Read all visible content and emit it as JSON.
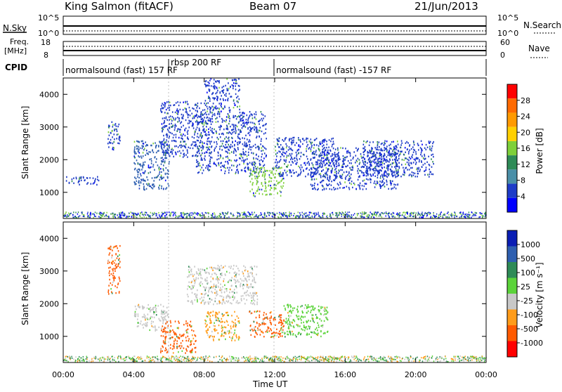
{
  "header": {
    "title": "King Salmon (fitACF)",
    "beam": "Beam 07",
    "date": "21/Jun/2013"
  },
  "top_panels": {
    "nsky_label": "N.Sky",
    "nsky_ticks": [
      "10^5",
      "10^0"
    ],
    "nsearch_label": "N.Search",
    "freq_label_1": "Freq.",
    "freq_label_2": "[MHz]",
    "freq_ticks": [
      "18",
      "8"
    ],
    "nave_label": "Nave",
    "nave_ticks": [
      "60",
      "0"
    ],
    "cpid_label": "CPID",
    "cpid_segments": [
      "normalsound (fast) 157 RF",
      "rbsp 200 RF",
      "normalsound (fast) -157 RF"
    ]
  },
  "axes": {
    "ylabel": "Slant Range [km]",
    "xlabel": "Time UT",
    "x_ticks": [
      "00:00",
      "04:00",
      "08:00",
      "12:00",
      "16:00",
      "20:00",
      "00:00"
    ],
    "y_ticks": [
      "1000",
      "2000",
      "3000",
      "4000"
    ]
  },
  "power_scale": {
    "label": "Power [dB]",
    "ticks": [
      "28",
      "24",
      "20",
      "16",
      "12",
      "8",
      "4"
    ],
    "colors": [
      "#ff0000",
      "#ff6a00",
      "#ff9a00",
      "#ffd000",
      "#7ed03a",
      "#2e8b57",
      "#4a8fa8",
      "#1e3cc8",
      "#0000ff"
    ]
  },
  "velocity_scale": {
    "label": "Velocity [m s⁻¹]",
    "ticks": [
      "1000",
      "500",
      "100",
      "25",
      "-25",
      "-100",
      "-500",
      "-1000"
    ],
    "colors": [
      "#0a1eb4",
      "#2e5fb0",
      "#2e8b57",
      "#5bd33a",
      "#c8c8c8",
      "#ff9c1a",
      "#ff5a00",
      "#ff0000"
    ]
  },
  "chart_data": {
    "type": "heatmap",
    "x": "time (hours UT)",
    "xlim": [
      0,
      24
    ],
    "ylim": [
      200,
      4500
    ],
    "scatter_regions_power": [
      {
        "t": [
          0.0,
          2.0
        ],
        "r": [
          1250,
          1500
        ],
        "color": "#1e3cc8"
      },
      {
        "t": [
          2.5,
          3.2
        ],
        "r": [
          2300,
          3200
        ],
        "color": "#1e3cc8"
      },
      {
        "t": [
          4.0,
          6.0
        ],
        "r": [
          1100,
          2600
        ],
        "color": "#2e5fb0"
      },
      {
        "t": [
          5.5,
          8.0
        ],
        "r": [
          2100,
          3800
        ],
        "color": "#1e3cc8"
      },
      {
        "t": [
          7.5,
          11.5
        ],
        "r": [
          1600,
          3500
        ],
        "color": "#1e3cc8"
      },
      {
        "t": [
          8.0,
          10.0
        ],
        "r": [
          3500,
          4500
        ],
        "color": "#1e3cc8"
      },
      {
        "t": [
          10.5,
          12.5
        ],
        "r": [
          900,
          1800
        ],
        "color": "#7ed03a"
      },
      {
        "t": [
          12.0,
          15.5
        ],
        "r": [
          1500,
          2700
        ],
        "color": "#1e3cc8"
      },
      {
        "t": [
          14.0,
          19.0
        ],
        "r": [
          1100,
          2400
        ],
        "color": "#1e3cc8"
      },
      {
        "t": [
          17.0,
          21.0
        ],
        "r": [
          1500,
          2600
        ],
        "color": "#1e3cc8"
      }
    ],
    "scatter_regions_velocity": [
      {
        "t": [
          2.5,
          3.2
        ],
        "r": [
          2300,
          3800
        ],
        "color": "#ff5a00"
      },
      {
        "t": [
          4.0,
          6.0
        ],
        "r": [
          1200,
          2000
        ],
        "color": "#c8c8c8"
      },
      {
        "t": [
          5.5,
          7.5
        ],
        "r": [
          500,
          1500
        ],
        "color": "#ff5a00"
      },
      {
        "t": [
          8.0,
          10.0
        ],
        "r": [
          900,
          1800
        ],
        "color": "#ff9c1a"
      },
      {
        "t": [
          10.5,
          12.5
        ],
        "r": [
          1000,
          1800
        ],
        "color": "#ff5a00"
      },
      {
        "t": [
          12.5,
          15.0
        ],
        "r": [
          1000,
          2000
        ],
        "color": "#5bd33a"
      },
      {
        "t": [
          7.0,
          11.0
        ],
        "r": [
          2000,
          3200
        ],
        "color": "#c8c8c8"
      }
    ]
  }
}
